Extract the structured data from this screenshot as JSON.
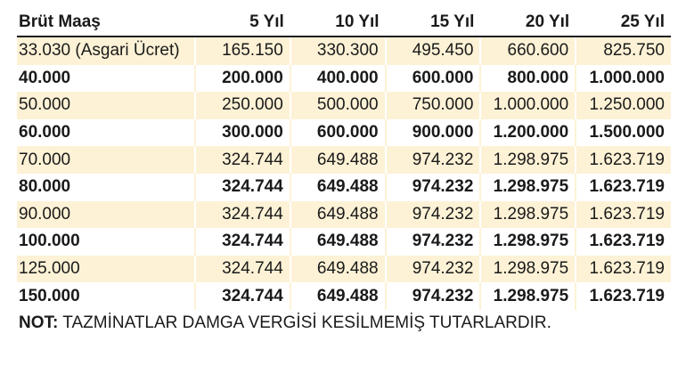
{
  "table": {
    "headers": [
      "Brüt Maaş",
      "5 Yıl",
      "10 Yıl",
      "15 Yıl",
      "20 Yıl",
      "25 Yıl"
    ],
    "rows": [
      [
        "33.030 (Asgari Ücret)",
        "165.150",
        "330.300",
        "495.450",
        "660.600",
        "825.750"
      ],
      [
        "40.000",
        "200.000",
        "400.000",
        "600.000",
        "800.000",
        "1.000.000"
      ],
      [
        "50.000",
        "250.000",
        "500.000",
        "750.000",
        "1.000.000",
        "1.250.000"
      ],
      [
        "60.000",
        "300.000",
        "600.000",
        "900.000",
        "1.200.000",
        "1.500.000"
      ],
      [
        "70.000",
        "324.744",
        "649.488",
        "974.232",
        "1.298.975",
        "1.623.719"
      ],
      [
        "80.000",
        "324.744",
        "649.488",
        "974.232",
        "1.298.975",
        "1.623.719"
      ],
      [
        "90.000",
        "324.744",
        "649.488",
        "974.232",
        "1.298.975",
        "1.623.719"
      ],
      [
        "100.000",
        "324.744",
        "649.488",
        "974.232",
        "1.298.975",
        "1.623.719"
      ],
      [
        "125.000",
        "324.744",
        "649.488",
        "974.232",
        "1.298.975",
        "1.623.719"
      ],
      [
        "150.000",
        "324.744",
        "649.488",
        "974.232",
        "1.298.975",
        "1.623.719"
      ]
    ]
  },
  "note": {
    "label": "NOT:",
    "text": " TAZMİNATLAR DAMGA VERGİSİ KESİLMEMİŞ TUTARLARDIR."
  },
  "colors": {
    "row_stripe": "#fdf2d6",
    "text": "#1a1a1a"
  }
}
